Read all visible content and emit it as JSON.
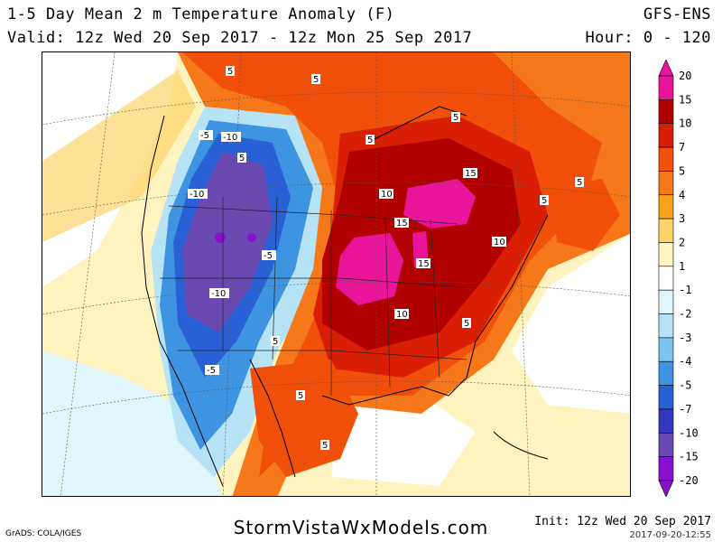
{
  "header": {
    "title": "1-5 Day Mean 2 m Temperature Anomaly (F)",
    "valid": "Valid: 12z Wed 20 Sep 2017 - 12z Mon 25 Sep 2017",
    "model": "GFS-ENS",
    "hour": "Hour: 0 - 120"
  },
  "legend": {
    "levels": [
      {
        "label": "20",
        "color": "#e8159b"
      },
      {
        "label": "15",
        "color": "#e8159b"
      },
      {
        "label": "10",
        "color": "#b00000"
      },
      {
        "label": "7",
        "color": "#d81e05"
      },
      {
        "label": "5",
        "color": "#f0500a"
      },
      {
        "label": "4",
        "color": "#f6781a"
      },
      {
        "label": "3",
        "color": "#f9a41e"
      },
      {
        "label": "2",
        "color": "#fdd36a"
      },
      {
        "label": "1",
        "color": "#fff3bf"
      },
      {
        "label": "-1",
        "color": "#ffffff"
      },
      {
        "label": "-2",
        "color": "#e1f6fb"
      },
      {
        "label": "-3",
        "color": "#b6e3f6"
      },
      {
        "label": "-4",
        "color": "#7fc4ee"
      },
      {
        "label": "-5",
        "color": "#3f94e2"
      },
      {
        "label": "-7",
        "color": "#2a60d6"
      },
      {
        "label": "-10",
        "color": "#3436c0"
      },
      {
        "label": "-15",
        "color": "#6a4ab0"
      },
      {
        "label": "-20",
        "color": "#8a10d0"
      }
    ]
  },
  "map_labels": [
    "5",
    "5",
    "5",
    "5",
    "5",
    "5",
    "-5",
    "-10",
    "-10",
    "-10",
    "10",
    "15",
    "15",
    "15",
    "10",
    "-5",
    "-5",
    "10",
    "5",
    "5",
    "5",
    "5",
    "5"
  ],
  "footer": {
    "software": "GrADS: COLA/IGES",
    "website": "StormVistaWxModels.com",
    "init": "Init: 12z Wed 20 Sep 2017",
    "stamp": "2017-09-20-12:55"
  }
}
